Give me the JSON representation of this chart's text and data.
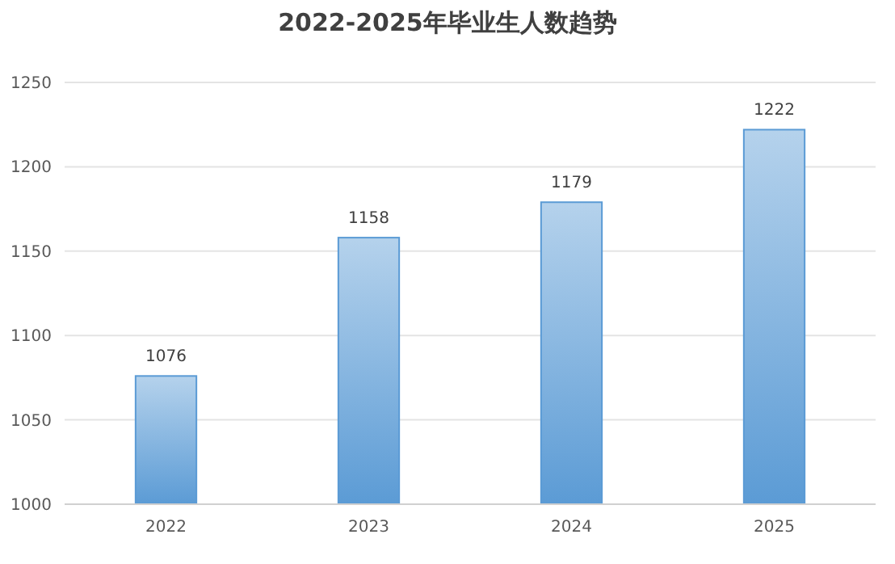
{
  "chart_data": {
    "type": "bar",
    "title": "2022-2025年毕业生人数趋势",
    "categories": [
      "2022",
      "2023",
      "2024",
      "2025"
    ],
    "values": [
      1076,
      1158,
      1179,
      1222
    ],
    "color": "#5b9bd5",
    "ylim": [
      1000,
      1250
    ],
    "yticks": [
      1000,
      1050,
      1100,
      1150,
      1200,
      1250
    ],
    "grid": "y",
    "data_labels": true
  }
}
